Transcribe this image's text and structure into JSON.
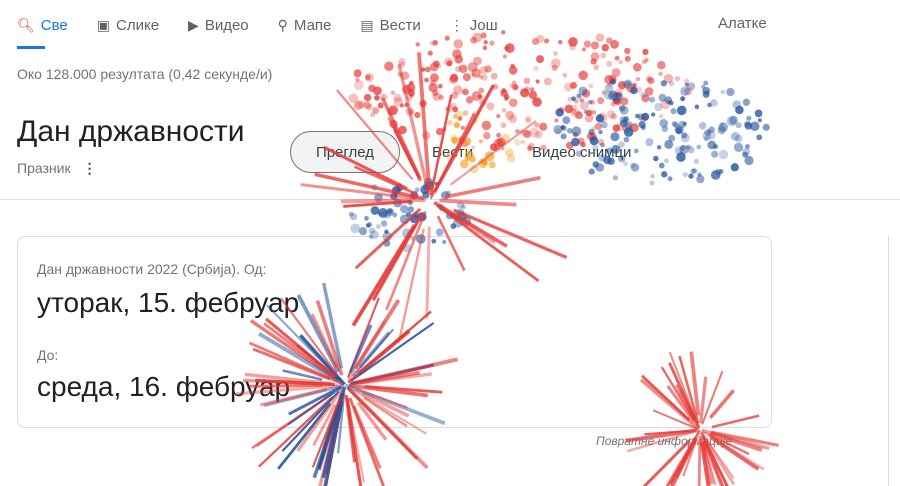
{
  "tabs": [
    {
      "label": "Све",
      "icon": "search-icon",
      "active": true
    },
    {
      "label": "Слике",
      "icon": "image-icon"
    },
    {
      "label": "Видео",
      "icon": "video-icon"
    },
    {
      "label": "Мапе",
      "icon": "map-pin-icon"
    },
    {
      "label": "Вести",
      "icon": "news-icon"
    },
    {
      "label": "Још",
      "icon": "more-vert-icon"
    }
  ],
  "tools_label": "Алатке",
  "result_stats": "Око 128.000 резултата (0,42 секунде/и)",
  "entity": {
    "title": "Дан државности",
    "subtitle": "Празник"
  },
  "chips": [
    "Преглед",
    "Вести",
    "Видео снимци"
  ],
  "card": {
    "from_label": "Дан државности 2022 (Србија). Од:",
    "from_value": "уторак, 15. фебруар",
    "to_label": "До:",
    "to_value": "среда, 16. фебруар"
  },
  "feedback": "Повратне информације",
  "colors": {
    "accent": "#1a73e8",
    "firework_red": "#e53935",
    "firework_blue": "#1e4f9c",
    "firework_gold": "#f0a020"
  }
}
